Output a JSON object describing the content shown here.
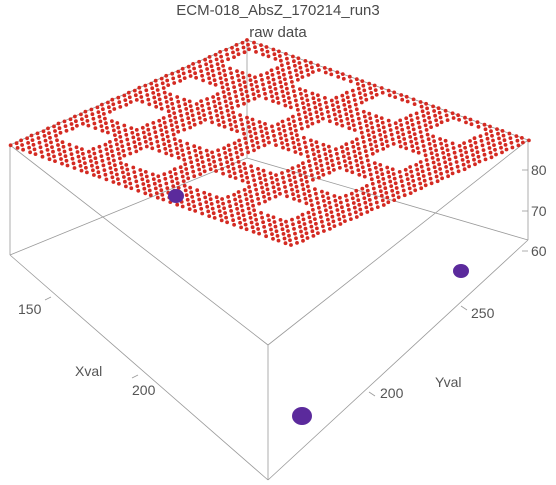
{
  "chart_data": {
    "type": "scatter3d",
    "title": "ECM-018_AbsZ_170214_run3",
    "subtitle": "raw data",
    "xlabel": "Xval",
    "ylabel": "Yval",
    "zlabel": "",
    "x_ticks": [
      150,
      200
    ],
    "y_ticks": [
      200,
      250
    ],
    "z_ticks": [
      60,
      70,
      80
    ],
    "xlim": [
      115,
      245
    ],
    "ylim": [
      140,
      290
    ],
    "zlim": [
      55,
      85
    ],
    "grid": false,
    "series": [
      {
        "color": "#d42a22",
        "description_points": "dense grid of points on a flat plane near z≈80 with rectangular gaps"
      },
      {
        "color": "#5b2a9c",
        "points": [
          {
            "x": 150,
            "y": 165,
            "z": 78
          },
          {
            "x": 240,
            "y": 255,
            "z": 62
          },
          {
            "x": 245,
            "y": 160,
            "z": 58
          }
        ]
      }
    ]
  }
}
